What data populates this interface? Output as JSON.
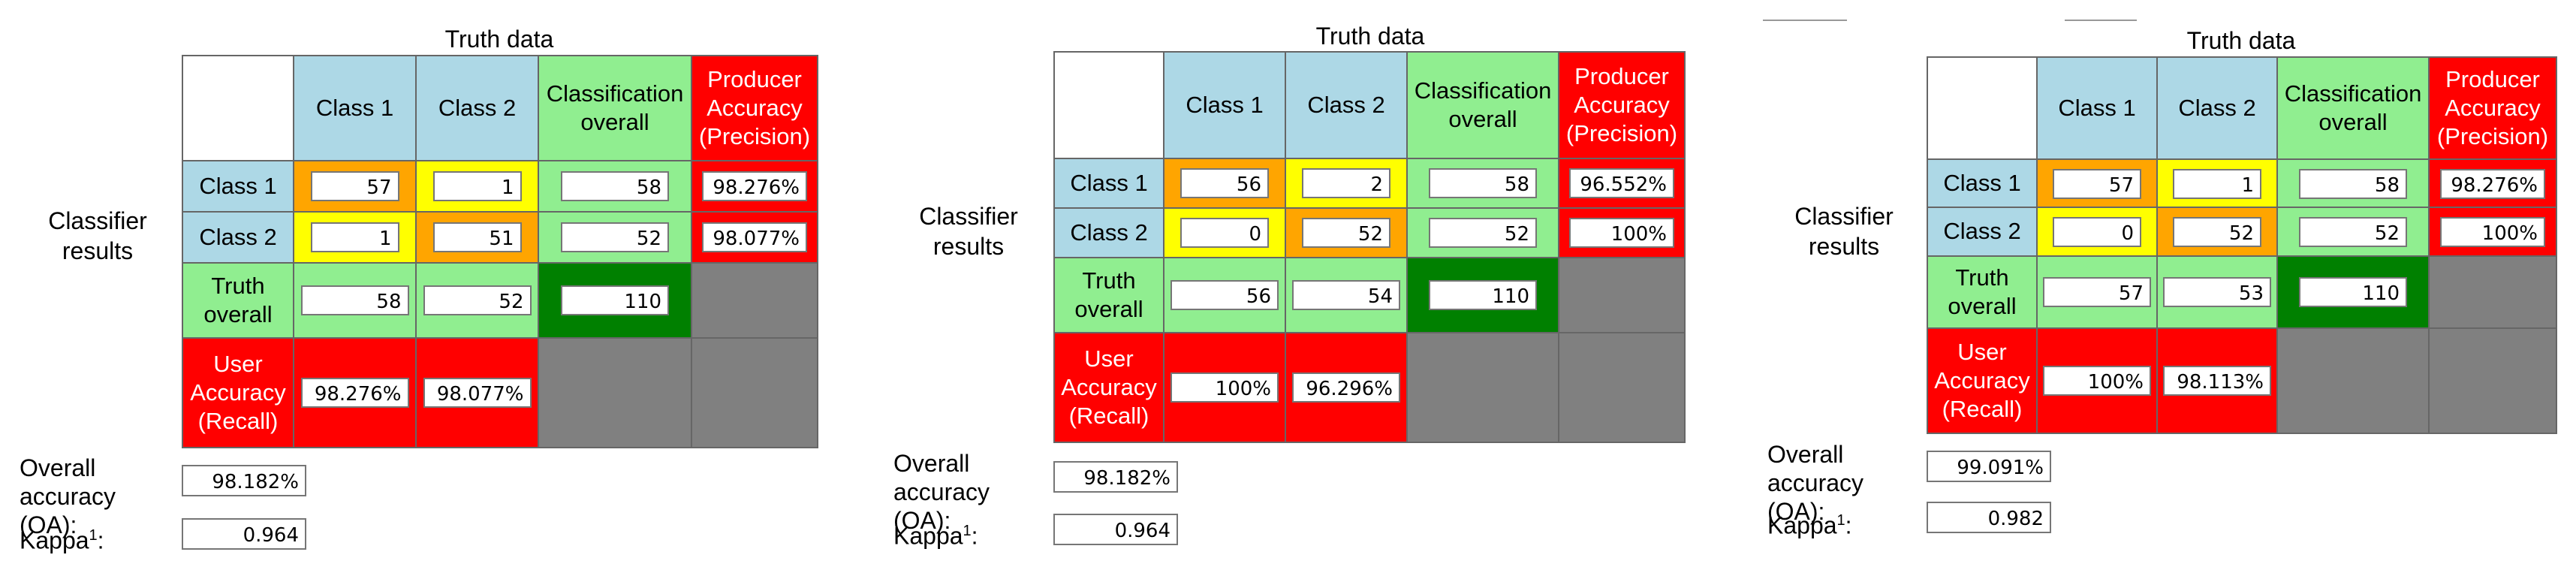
{
  "labels": {
    "truth_data": "Truth data",
    "classifier_line1": "Classifier",
    "classifier_line2": "results",
    "class1": "Class 1",
    "class2": "Class 2",
    "classification_overall_l1": "Classification",
    "classification_overall_l2": "overall",
    "producer_l1": "Producer",
    "producer_l2": "Accuracy",
    "producer_l3": "(Precision)",
    "truth_overall_l1": "Truth",
    "truth_overall_l2": "overall",
    "user_l1": "User",
    "user_l2": "Accuracy",
    "user_l3": "(Recall)",
    "overall_accuracy_l1": "Overall",
    "overall_accuracy_l2": "accuracy (OA):",
    "kappa": "Kappa",
    "kappa_sup": "1",
    "colon": ":"
  },
  "colors": {
    "header_blue": "#add8e6",
    "overall_green": "#90ee90",
    "accuracy_red": "#ff0000",
    "correct_orange": "#ffa500",
    "error_yellow": "#ffff00",
    "total_dark_green": "#008000",
    "empty_gray": "#808080"
  },
  "matrices": [
    {
      "r1c1": "57",
      "r1c2": "1",
      "r1tot": "58",
      "r1prod": "98.276%",
      "r2c1": "1",
      "r2c2": "51",
      "r2tot": "52",
      "r2prod": "98.077%",
      "t1": "58",
      "t2": "52",
      "total": "110",
      "u1": "98.276%",
      "u2": "98.077%",
      "oa": "98.182%",
      "kappa": "0.964"
    },
    {
      "r1c1": "56",
      "r1c2": "2",
      "r1tot": "58",
      "r1prod": "96.552%",
      "r2c1": "0",
      "r2c2": "52",
      "r2tot": "52",
      "r2prod": "100%",
      "t1": "56",
      "t2": "54",
      "total": "110",
      "u1": "100%",
      "u2": "96.296%",
      "oa": "98.182%",
      "kappa": "0.964"
    },
    {
      "r1c1": "57",
      "r1c2": "1",
      "r1tot": "58",
      "r1prod": "98.276%",
      "r2c1": "0",
      "r2c2": "52",
      "r2tot": "52",
      "r2prod": "100%",
      "t1": "57",
      "t2": "53",
      "total": "110",
      "u1": "100%",
      "u2": "98.113%",
      "oa": "99.091%",
      "kappa": "0.982"
    }
  ]
}
